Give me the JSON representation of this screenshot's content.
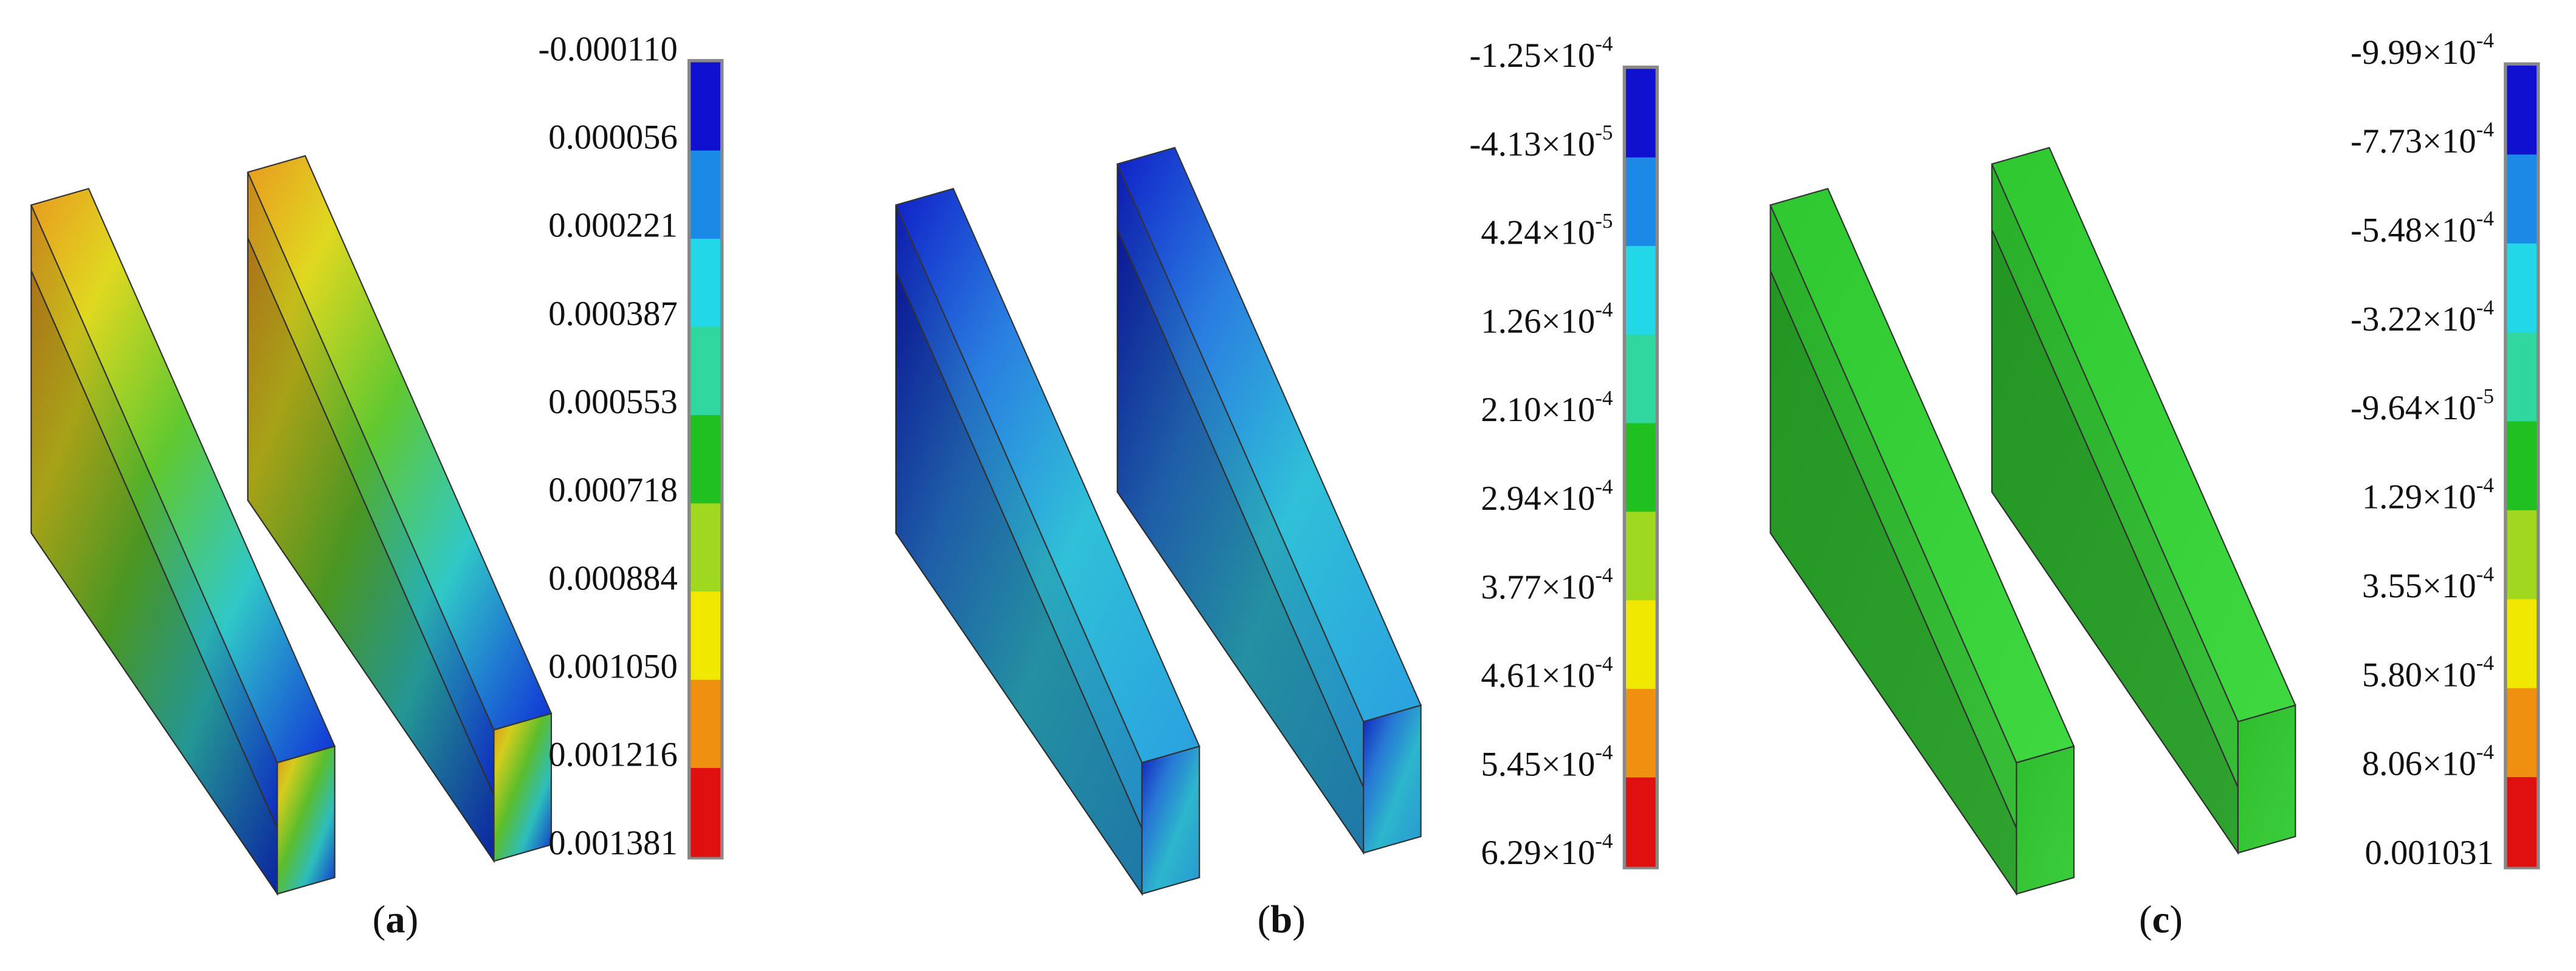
{
  "panels": [
    {
      "caption": [
        "(",
        "a",
        ")"
      ],
      "legend": {
        "colors": [
          "#1010d0",
          "#1a8ae6",
          "#22d8e8",
          "#30d8a0",
          "#20c020",
          "#a0d820",
          "#f0e800",
          "#f09010",
          "#e01010"
        ],
        "labels": [
          "-0.000110",
          "0.000056",
          "0.000221",
          "0.000387",
          "0.000553",
          "0.000718",
          "0.000884",
          "0.001050",
          "0.001216",
          "0.001381"
        ]
      }
    },
    {
      "caption": [
        "(",
        "b",
        ")"
      ],
      "legend": {
        "colors": [
          "#1010d0",
          "#1a8ae6",
          "#22d8e8",
          "#30d8a0",
          "#20c020",
          "#a0d820",
          "#f0e800",
          "#f09010",
          "#e01010"
        ],
        "labels": [
          {
            "base": "-1.25×10",
            "exp": "-4"
          },
          {
            "base": "-4.13×10",
            "exp": "-5"
          },
          {
            "base": "4.24×10",
            "exp": "-5"
          },
          {
            "base": "1.26×10",
            "exp": "-4"
          },
          {
            "base": "2.10×10",
            "exp": "-4"
          },
          {
            "base": "2.94×10",
            "exp": "-4"
          },
          {
            "base": "3.77×10",
            "exp": "-4"
          },
          {
            "base": "4.61×10",
            "exp": "-4"
          },
          {
            "base": "5.45×10",
            "exp": "-4"
          },
          {
            "base": "6.29×10",
            "exp": "-4"
          }
        ]
      }
    },
    {
      "caption": [
        "(",
        "c",
        ")"
      ],
      "legend": {
        "colors": [
          "#1010d0",
          "#1a8ae6",
          "#22d8e8",
          "#30d8a0",
          "#20c020",
          "#a0d820",
          "#f0e800",
          "#f09010",
          "#e01010"
        ],
        "labels": [
          {
            "base": "-9.99×10",
            "exp": "-4"
          },
          {
            "base": "-7.73×10",
            "exp": "-4"
          },
          {
            "base": "-5.48×10",
            "exp": "-4"
          },
          {
            "base": "-3.22×10",
            "exp": "-4"
          },
          {
            "base": "-9.64×10",
            "exp": "-5"
          },
          {
            "base": "1.29×10",
            "exp": "-4"
          },
          {
            "base": "3.55×10",
            "exp": "-4"
          },
          {
            "base": "5.80×10",
            "exp": "-4"
          },
          {
            "base": "8.06×10",
            "exp": "-4"
          },
          "0.001031"
        ]
      }
    }
  ]
}
